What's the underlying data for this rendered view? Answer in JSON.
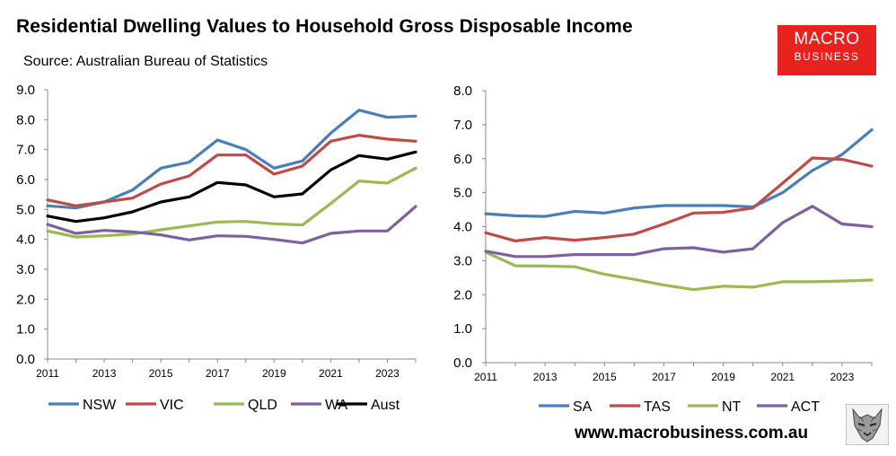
{
  "header": {
    "title": "Residential Dwelling Values to Household Gross Disposable Income",
    "source": "Source: Australian Bureau of Statistics"
  },
  "logo": {
    "line1": "MACRO",
    "line2": "BUSINESS"
  },
  "footer": {
    "website": "www.macrobusiness.com.au"
  },
  "chart_data": [
    {
      "type": "line",
      "title": "",
      "xlabel": "",
      "ylabel": "",
      "ylim": [
        0,
        9
      ],
      "yticks": [
        "0.0",
        "1.0",
        "2.0",
        "3.0",
        "4.0",
        "5.0",
        "6.0",
        "7.0",
        "8.0",
        "9.0"
      ],
      "xlim": [
        2011,
        2024
      ],
      "xticks": [
        "2011",
        "2013",
        "2015",
        "2017",
        "2019",
        "2021",
        "2023"
      ],
      "x": [
        2011,
        2012,
        2013,
        2014,
        2015,
        2016,
        2017,
        2018,
        2019,
        2020,
        2021,
        2022,
        2023,
        2024
      ],
      "series": [
        {
          "name": "NSW",
          "color": "#4a7ebb",
          "values": [
            5.12,
            5.05,
            5.25,
            5.65,
            6.38,
            6.58,
            7.32,
            7.0,
            6.38,
            6.62,
            7.55,
            8.32,
            8.08,
            8.12
          ]
        },
        {
          "name": "VIC",
          "color": "#be4b48",
          "values": [
            5.32,
            5.12,
            5.25,
            5.38,
            5.85,
            6.12,
            6.82,
            6.82,
            6.18,
            6.45,
            7.28,
            7.48,
            7.35,
            7.28
          ]
        },
        {
          "name": "QLD",
          "color": "#98b954",
          "values": [
            4.28,
            4.08,
            4.12,
            4.18,
            4.32,
            4.45,
            4.58,
            4.6,
            4.52,
            4.48,
            5.2,
            5.95,
            5.88,
            6.38
          ]
        },
        {
          "name": "WA",
          "color": "#7d60a0",
          "values": [
            4.5,
            4.2,
            4.3,
            4.25,
            4.15,
            3.98,
            4.12,
            4.1,
            4.0,
            3.88,
            4.2,
            4.28,
            4.28,
            5.1
          ]
        },
        {
          "name": "Aust",
          "color": "#000000",
          "values": [
            4.78,
            4.6,
            4.72,
            4.92,
            5.25,
            5.42,
            5.9,
            5.82,
            5.42,
            5.52,
            6.32,
            6.8,
            6.68,
            6.92
          ]
        }
      ]
    },
    {
      "type": "line",
      "title": "",
      "xlabel": "",
      "ylabel": "",
      "ylim": [
        0,
        8
      ],
      "yticks": [
        "0.0",
        "1.0",
        "2.0",
        "3.0",
        "4.0",
        "5.0",
        "6.0",
        "7.0",
        "8.0"
      ],
      "xlim": [
        2011,
        2024
      ],
      "xticks": [
        "2011",
        "2013",
        "2015",
        "2017",
        "2019",
        "2021",
        "2023"
      ],
      "x": [
        2011,
        2012,
        2013,
        2014,
        2015,
        2016,
        2017,
        2018,
        2019,
        2020,
        2021,
        2022,
        2023,
        2024
      ],
      "series": [
        {
          "name": "SA",
          "color": "#4a7ebb",
          "values": [
            4.38,
            4.32,
            4.3,
            4.45,
            4.4,
            4.55,
            4.62,
            4.62,
            4.62,
            4.58,
            5.0,
            5.65,
            6.12,
            6.85
          ]
        },
        {
          "name": "TAS",
          "color": "#be4b48",
          "values": [
            3.82,
            3.58,
            3.68,
            3.6,
            3.68,
            3.78,
            4.08,
            4.4,
            4.42,
            4.55,
            5.28,
            6.02,
            5.98,
            5.78
          ]
        },
        {
          "name": "NT",
          "color": "#98b954",
          "values": [
            3.25,
            2.85,
            2.84,
            2.82,
            2.6,
            2.45,
            2.28,
            2.15,
            2.25,
            2.22,
            2.38,
            2.38,
            2.4,
            2.43
          ]
        },
        {
          "name": "ACT",
          "color": "#7d60a0",
          "values": [
            3.28,
            3.12,
            3.12,
            3.18,
            3.18,
            3.18,
            3.35,
            3.38,
            3.25,
            3.35,
            4.12,
            4.6,
            4.08,
            4.0
          ]
        }
      ]
    }
  ]
}
